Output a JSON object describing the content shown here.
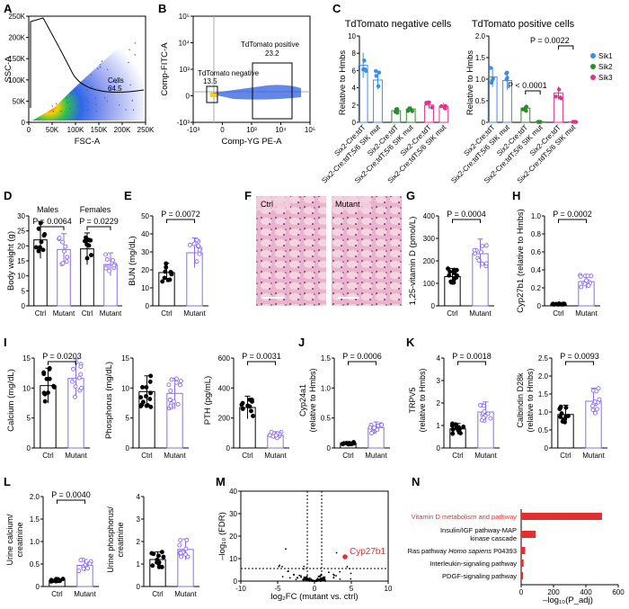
{
  "panel_labels": [
    "A",
    "B",
    "C",
    "D",
    "E",
    "F",
    "G",
    "H",
    "I",
    "J",
    "K",
    "L",
    "M",
    "N"
  ],
  "colors": {
    "ctrl": "#000000",
    "mutant": "#8b6cf0",
    "sik1": "#3a8ee6",
    "sik2": "#2f8a2f",
    "sik3": "#e0338c",
    "highlight": "#e03030",
    "bar_n": "#e03030"
  },
  "panelA": {
    "xlabel": "FSC-A",
    "ylabel": "SSC-A",
    "xticks": [
      "0",
      "50K",
      "100K",
      "150K",
      "200K",
      "250K"
    ],
    "yticks": [
      "0",
      "50K",
      "100K",
      "150K",
      "200K",
      "250K"
    ],
    "gate_name": "Cells",
    "gate_value": "64.5"
  },
  "panelB": {
    "xlabel": "Comp-YG PE-A",
    "ylabel": "Comp-FITC-A",
    "xticks": [
      "-10³",
      "0",
      "10³",
      "10⁴",
      "10⁵"
    ],
    "yticks": [
      "-10³",
      "0",
      "10³",
      "10⁴",
      "10⁵"
    ],
    "neg_name": "TdTomato negative",
    "neg_value": "13.5",
    "pos_name": "TdTomato positive",
    "pos_value": "23.2"
  },
  "panelC": {
    "ylabel": "Relative to Hmbs",
    "legend": [
      "Sik1",
      "Sik2",
      "Sik3"
    ],
    "groups": [
      "Six2-Cre;tdT",
      "Six2-Cre;tdT;5/6 SIK mut",
      "Six2-Cre;tdT",
      "Six2-Cre;tdT;5/6 SIK mut",
      "Six2-Cre;tdT",
      "Six2-Cre;tdT;5/6 SIK mut"
    ],
    "left": {
      "title": "TdTomato negative cells",
      "yticks": [
        "0",
        "2",
        "4",
        "6",
        "8",
        "10"
      ],
      "ylim": [
        0,
        10
      ],
      "means": [
        6.6,
        4.9,
        1.35,
        1.55,
        2.0,
        1.85
      ]
    },
    "right": {
      "title": "TdTomato positive cells",
      "yticks": [
        "0",
        "0.5",
        "1.0",
        "1.5",
        "2.0"
      ],
      "ylim": [
        0,
        2
      ],
      "means": [
        1.05,
        0.97,
        0.33,
        0.01,
        0.68,
        0.01
      ],
      "p1": "P < 0.0001",
      "p2": "P = 0.0022"
    }
  },
  "groups2": [
    "Ctrl",
    "Mutant"
  ],
  "panelD": {
    "ylabel": "Body weight (g)",
    "yticks": [
      "0",
      "5",
      "10",
      "15",
      "20",
      "25",
      "30"
    ],
    "males": "Males",
    "females": "Females",
    "p_males": "P = 0.0064",
    "p_females": "P = 0.0229",
    "means": [
      22,
      18.8,
      19,
      13.8
    ]
  },
  "panelE": {
    "ylabel": "BUN (mg/dL)",
    "yticks": [
      "0",
      "10",
      "20",
      "30",
      "40",
      "50"
    ],
    "p": "P = 0.0072",
    "means": [
      18.5,
      29.5
    ]
  },
  "panelF": {
    "labels": [
      "Ctrl",
      "Mutant"
    ]
  },
  "panelG": {
    "ylabel": "1,25-vitamin D (pmol/L)",
    "yticks": [
      "0",
      "100",
      "200",
      "300",
      "400"
    ],
    "p": "P = 0.0004",
    "means": [
      130,
      232
    ]
  },
  "panelH": {
    "ylabel": "Cyp27b1 (relative to Hmbs)",
    "yticks": [
      "0",
      "0.2",
      "0.4",
      "0.6",
      "0.8",
      "1.0"
    ],
    "p": "P = 0.0002",
    "means": [
      0.02,
      0.27
    ]
  },
  "panelI1": {
    "ylabel": "Calcium (mg/dL)",
    "yticks": [
      "0",
      "5",
      "10",
      "15"
    ],
    "p": "P = 0.0203",
    "means": [
      10.4,
      11.6
    ]
  },
  "panelI2": {
    "ylabel": "Phosphorus (mg/dL)",
    "yticks": [
      "0",
      "5",
      "10",
      "15"
    ],
    "means": [
      9.4,
      9.1
    ]
  },
  "panelI3": {
    "ylabel": "PTH (pg/mL)",
    "yticks": [
      "0",
      "200",
      "400",
      "600"
    ],
    "p": "P = 0.0031",
    "means": [
      270,
      85
    ]
  },
  "panelJ": {
    "ylabel": "Cyp24a1 (relative to Hmbs)",
    "yticks": [
      "0",
      "0.5",
      "1.0",
      "1.5"
    ],
    "p": "P = 0.0006",
    "means": [
      0.08,
      0.34
    ]
  },
  "panelK1": {
    "ylabel": "TRPV5 (relative to Hmbs)",
    "yticks": [
      "0",
      "1",
      "2",
      "3",
      "4"
    ],
    "p": "P = 0.0018",
    "means": [
      0.85,
      1.6
    ]
  },
  "panelK2": {
    "ylabel": "Calbindin D28k (relative to Hmbs)",
    "yticks": [
      "0",
      "0.5",
      "1.0",
      "1.5",
      "2.0",
      "2.5"
    ],
    "p": "P = 0.0093",
    "means": [
      0.93,
      1.3
    ]
  },
  "panelL1": {
    "ylabel": "Urine calcium/ creatinine",
    "yticks": [
      "0",
      "0.5",
      "1.0",
      "1.5",
      "2.0"
    ],
    "p": "P = 0.0040",
    "means": [
      0.14,
      0.47
    ]
  },
  "panelL2": {
    "ylabel": "Urine phosphorus/ creatinine",
    "yticks": [
      "0",
      "1",
      "2",
      "3",
      "4"
    ],
    "means": [
      1.2,
      1.65
    ]
  },
  "panelM": {
    "xlabel": "log₂FC (mutant vs. ctrl)",
    "ylabel": "–log₁₀ (FDR)",
    "xticks": [
      "-10",
      "-5",
      "0",
      "5",
      "10"
    ],
    "yticks": [
      "0",
      "10",
      "20",
      "30",
      "40"
    ],
    "highlight": "Cyp27b1"
  },
  "panelN": {
    "xlabel": "–log₁₀(P_adj)",
    "xticks": [
      "0",
      "200",
      "400",
      "600"
    ],
    "chart_data": {
      "type": "bar",
      "categories": [
        "Vitamin D metabolism and pathway",
        "Insulin/IGF pathway-MAP kinase cascade",
        "Ras pathway Homo sapiens P04393",
        "Interleukin-signaling pathway",
        "PDGF-signaling pathway"
      ],
      "values": [
        500,
        90,
        25,
        15,
        12
      ],
      "xlim": [
        0,
        600
      ]
    },
    "labels": [
      "Vitamin D metabolism and pathway",
      "Insulin/IGF pathway-MAP",
      "kinase cascade",
      "Ras pathway ",
      "Homo sapiens",
      " P04393",
      "Interleukin-signaling pathway",
      "PDGF-signaling pathway"
    ]
  }
}
